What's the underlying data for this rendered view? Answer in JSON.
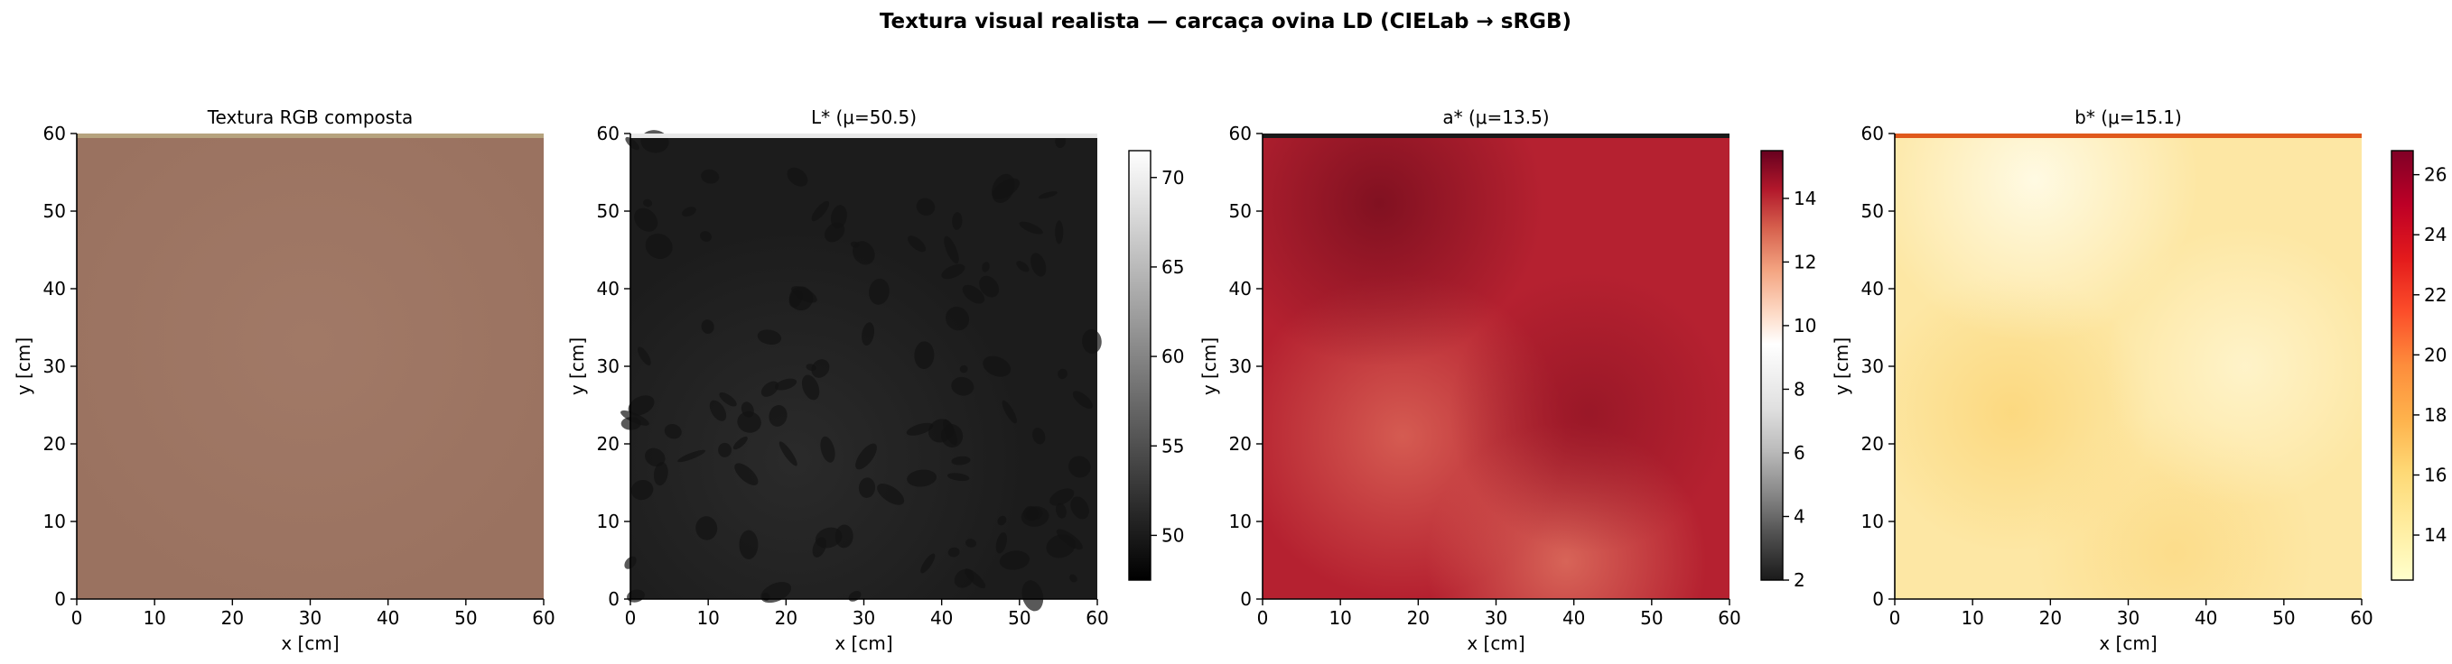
{
  "figure": {
    "suptitle": "Textura visual realista — carcaça ovina LD (CIELab → sRGB)"
  },
  "chart_data": [
    {
      "type": "heatmap",
      "title": "Textura RGB composta",
      "xlabel": "x [cm]",
      "ylabel": "y [cm]",
      "xlim": [
        0,
        60
      ],
      "ylim": [
        0,
        60
      ],
      "xticks": [
        0,
        10,
        20,
        30,
        40,
        50,
        60
      ],
      "yticks": [
        0,
        10,
        20,
        30,
        40,
        50,
        60
      ],
      "colormap": null,
      "base_color": "#9a7260",
      "top_edge_color": "#b6a37e",
      "colorbar": null
    },
    {
      "type": "heatmap",
      "title": "L*  (μ=50.5)",
      "xlabel": "x [cm]",
      "ylabel": "y [cm]",
      "xlim": [
        0,
        60
      ],
      "ylim": [
        0,
        60
      ],
      "xticks": [
        0,
        10,
        20,
        30,
        40,
        50,
        60
      ],
      "yticks": [
        0,
        10,
        20,
        30,
        40,
        50,
        60
      ],
      "colormap": "gray",
      "base_color": "#1c1c1c",
      "top_edge_color": "#e8e8e8",
      "colorbar": {
        "min": 47.5,
        "max": 71.5,
        "ticks": [
          50,
          55,
          60,
          65,
          70
        ]
      }
    },
    {
      "type": "heatmap",
      "title": "a*  (μ=13.5)",
      "xlabel": "x [cm]",
      "ylabel": "y [cm]",
      "xlim": [
        0,
        60
      ],
      "ylim": [
        0,
        60
      ],
      "xticks": [
        0,
        10,
        20,
        30,
        40,
        50,
        60
      ],
      "yticks": [
        0,
        10,
        20,
        30,
        40,
        50,
        60
      ],
      "colormap": "RdGy_r",
      "base_color": "#b52130",
      "top_edge_color": "#1a1a1a",
      "colorbar": {
        "min": 2,
        "max": 15.5,
        "ticks": [
          2,
          4,
          6,
          8,
          10,
          12,
          14
        ]
      }
    },
    {
      "type": "heatmap",
      "title": "b*  (μ=15.1)",
      "xlabel": "x [cm]",
      "ylabel": "y [cm]",
      "xlim": [
        0,
        60
      ],
      "ylim": [
        0,
        60
      ],
      "xticks": [
        0,
        10,
        20,
        30,
        40,
        50,
        60
      ],
      "yticks": [
        0,
        10,
        20,
        30,
        40,
        50,
        60
      ],
      "colormap": "YlOrRd",
      "base_color": "#fde7a4",
      "top_edge_color": "#e0591c",
      "colorbar": {
        "min": 12.5,
        "max": 26.8,
        "ticks": [
          14,
          16,
          18,
          20,
          22,
          24,
          26
        ]
      }
    }
  ]
}
